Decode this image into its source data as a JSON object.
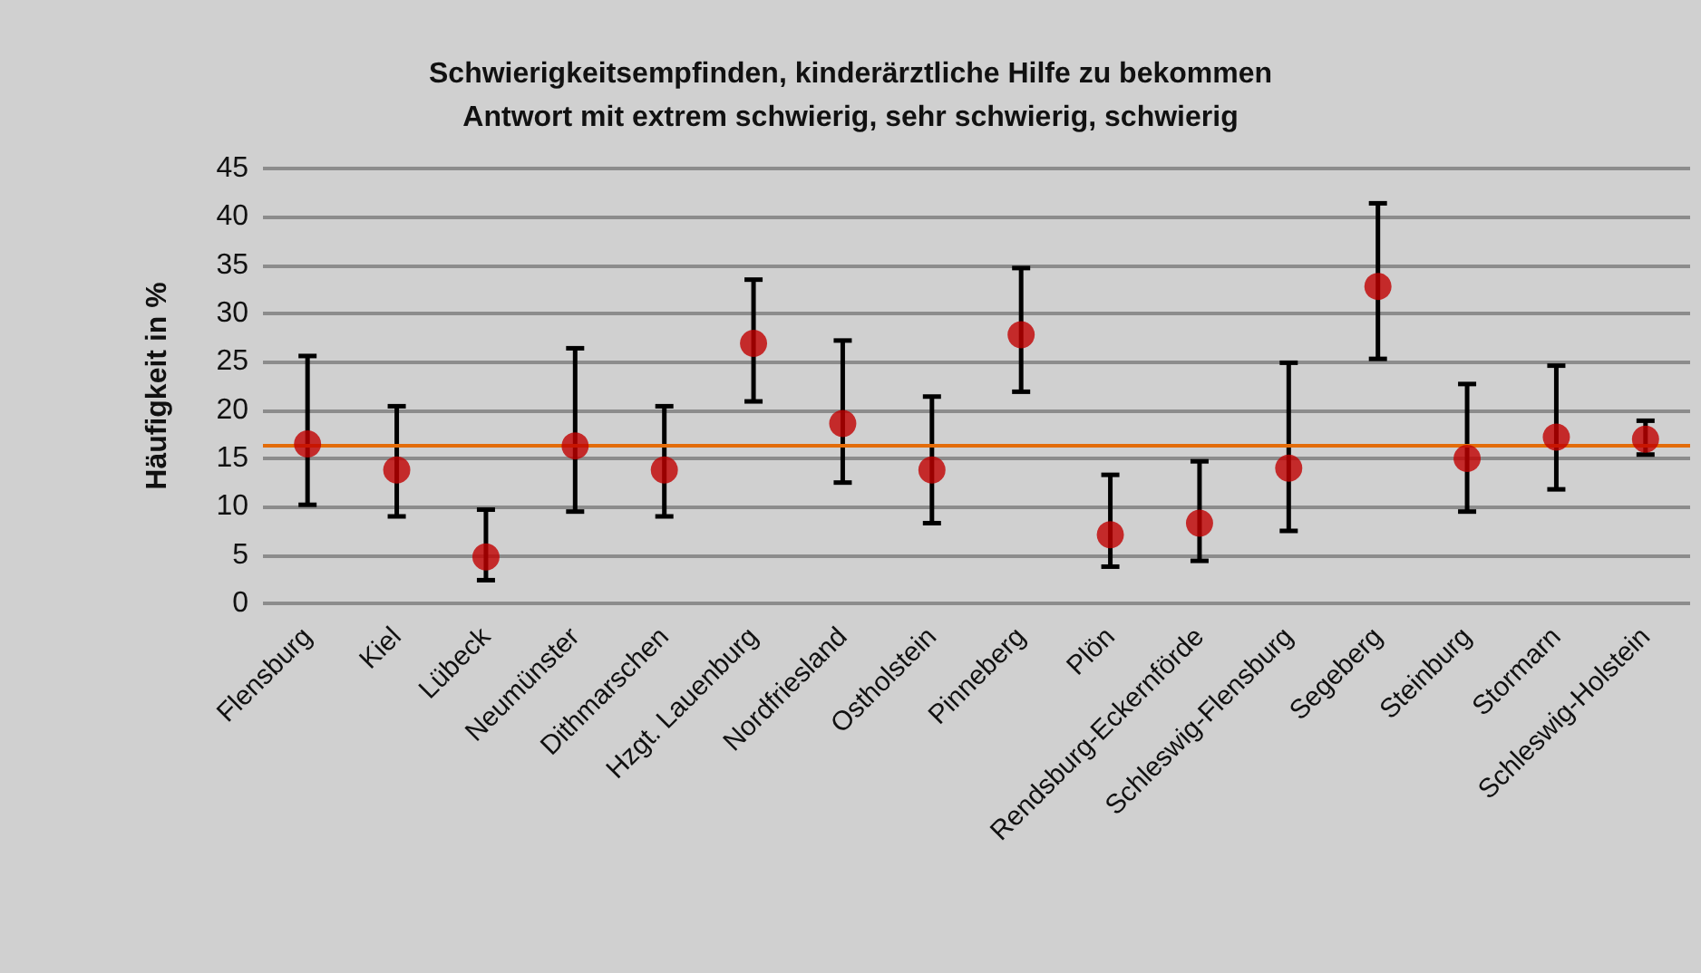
{
  "chart_data": {
    "type": "scatter",
    "title": "Schwierigkeitsempfinden, kinderärztliche Hilfe zu bekommen",
    "subtitle": "Antwort mit extrem schwierig, sehr schwierig, schwierig",
    "ylabel": "Häufigkeit in %",
    "categories": [
      "Flensburg",
      "Kiel",
      "Lübeck",
      "Neumünster",
      "Dithmarschen",
      "Hzgt. Lauenburg",
      "Nordfriesland",
      "Ostholstein",
      "Pinneberg",
      "Plön",
      "Rendsburg-Eckernförde",
      "Schleswig-Flensburg",
      "Segeberg",
      "Steinburg",
      "Stormarn",
      "Schleswig-Holstein"
    ],
    "series": [
      {
        "color": "#c00000",
        "values": [
          16.5,
          13.8,
          4.8,
          16.3,
          13.8,
          26.9,
          18.6,
          13.8,
          27.8,
          7.1,
          8.3,
          14.0,
          32.8,
          15.0,
          17.2,
          17.0
        ],
        "errors": [
          [
            10.2,
            25.6
          ],
          [
            9.0,
            20.4
          ],
          [
            2.4,
            9.7
          ],
          [
            9.5,
            26.4
          ],
          [
            9.0,
            20.4
          ],
          [
            20.9,
            33.5
          ],
          [
            12.5,
            27.2
          ],
          [
            8.3,
            21.4
          ],
          [
            21.9,
            34.7
          ],
          [
            3.8,
            13.3
          ],
          [
            4.4,
            14.7
          ],
          [
            7.5,
            24.9
          ],
          [
            25.3,
            41.4
          ],
          [
            9.5,
            22.7
          ],
          [
            11.8,
            24.6
          ],
          [
            15.4,
            18.9
          ]
        ]
      }
    ],
    "ylim": [
      0,
      45
    ],
    "yticks": [
      0,
      5,
      10,
      15,
      20,
      25,
      30,
      35,
      40,
      45
    ],
    "grid": "y",
    "marker": "circle",
    "ref_lines": [
      {
        "axis": "y",
        "value": 16.4,
        "color": "#e36c09"
      }
    ]
  }
}
